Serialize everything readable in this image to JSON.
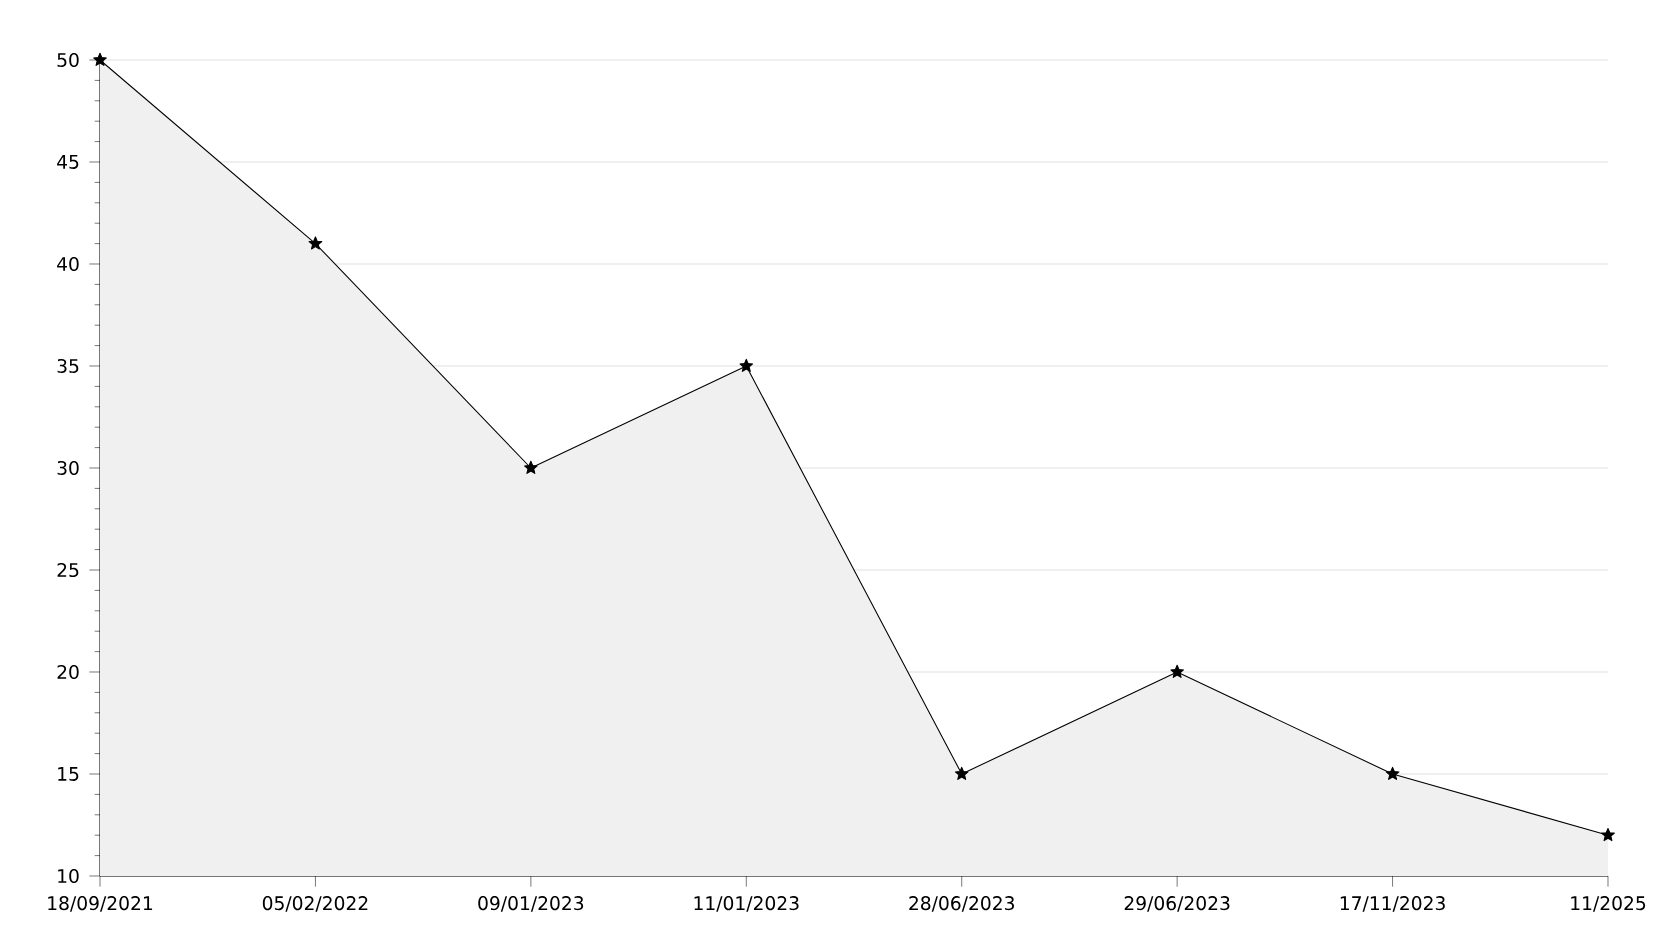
{
  "chart_data": {
    "type": "area",
    "categories": [
      "18/09/2021",
      "05/02/2022",
      "09/01/2023",
      "11/01/2023",
      "28/06/2023",
      "29/06/2023",
      "17/11/2023",
      "11/2025"
    ],
    "values": [
      50,
      41,
      30,
      35,
      15,
      20,
      15,
      12
    ],
    "color": "#000000",
    "ylim": [
      10,
      50
    ],
    "yticks": [
      10,
      15,
      20,
      25,
      30,
      35,
      40,
      45,
      50
    ],
    "grid": "y",
    "marker": "star",
    "line_style": "solid"
  }
}
